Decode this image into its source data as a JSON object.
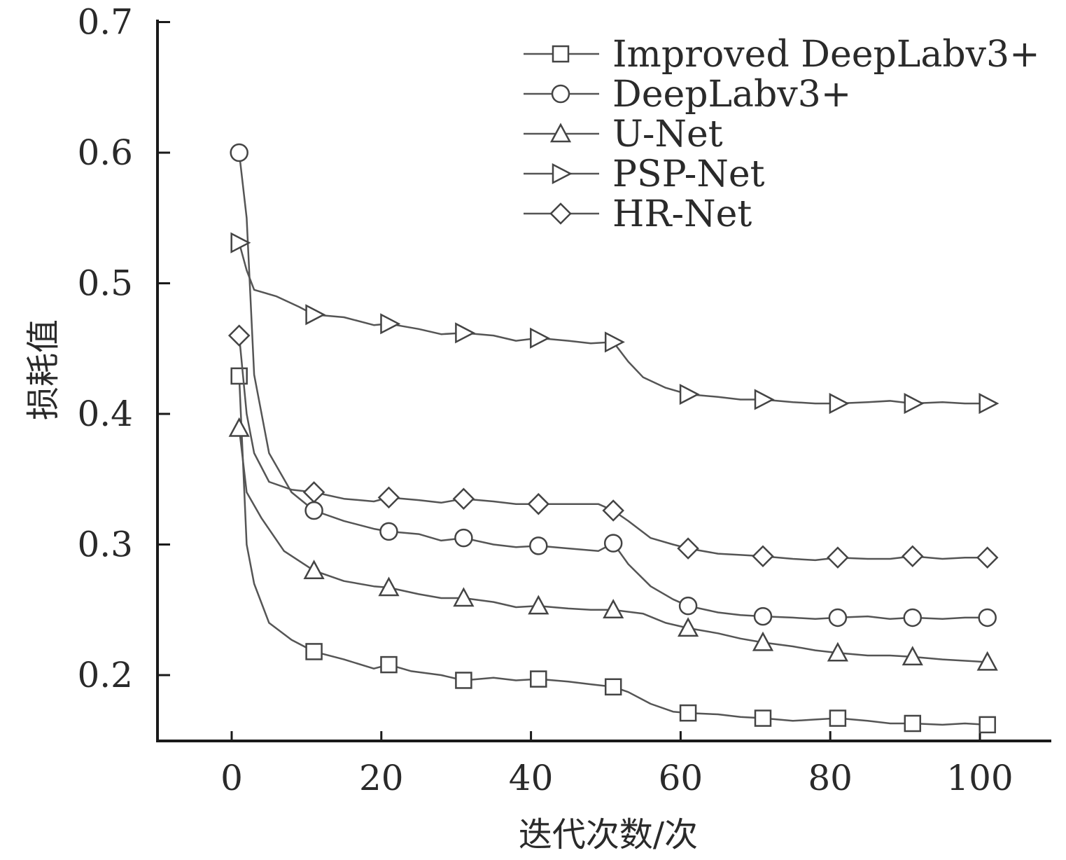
{
  "chart_data": {
    "type": "line",
    "title": "",
    "xlabel": "迭代次数/次",
    "ylabel": "损耗值",
    "xlim": [
      -10,
      110
    ],
    "ylim": [
      0.15,
      0.7
    ],
    "x_ticks": [
      "0",
      "20",
      "40",
      "60",
      "80",
      "100"
    ],
    "y_ticks": [
      "0.2",
      "0.3",
      "0.4",
      "0.5",
      "0.6",
      "0.7"
    ],
    "legend_position": "top-right",
    "grid": false,
    "x": [
      1,
      11,
      21,
      31,
      41,
      51,
      61,
      71,
      81,
      91,
      101
    ],
    "series": [
      {
        "name": "Improved DeepLabv3+",
        "marker": "square",
        "values": [
          0.429,
          0.218,
          0.208,
          0.196,
          0.197,
          0.191,
          0.171,
          0.167,
          0.167,
          0.163,
          0.162
        ],
        "line": [
          [
            1,
            0.429
          ],
          [
            2,
            0.3
          ],
          [
            3,
            0.27
          ],
          [
            5,
            0.24
          ],
          [
            8,
            0.227
          ],
          [
            11,
            0.218
          ],
          [
            15,
            0.212
          ],
          [
            19,
            0.205
          ],
          [
            21,
            0.208
          ],
          [
            24,
            0.203
          ],
          [
            28,
            0.2
          ],
          [
            31,
            0.196
          ],
          [
            35,
            0.198
          ],
          [
            38,
            0.196
          ],
          [
            41,
            0.197
          ],
          [
            45,
            0.195
          ],
          [
            48,
            0.193
          ],
          [
            51,
            0.191
          ],
          [
            53,
            0.187
          ],
          [
            56,
            0.178
          ],
          [
            59,
            0.172
          ],
          [
            61,
            0.171
          ],
          [
            65,
            0.17
          ],
          [
            68,
            0.168
          ],
          [
            71,
            0.167
          ],
          [
            75,
            0.165
          ],
          [
            78,
            0.166
          ],
          [
            81,
            0.167
          ],
          [
            85,
            0.165
          ],
          [
            88,
            0.163
          ],
          [
            91,
            0.163
          ],
          [
            95,
            0.162
          ],
          [
            98,
            0.163
          ],
          [
            101,
            0.162
          ]
        ]
      },
      {
        "name": "DeepLabv3+",
        "marker": "circle",
        "values": [
          0.6,
          0.326,
          0.31,
          0.305,
          0.299,
          0.301,
          0.253,
          0.245,
          0.244,
          0.244,
          0.244
        ],
        "line": [
          [
            1,
            0.6
          ],
          [
            2,
            0.55
          ],
          [
            3,
            0.43
          ],
          [
            5,
            0.37
          ],
          [
            8,
            0.34
          ],
          [
            11,
            0.326
          ],
          [
            15,
            0.318
          ],
          [
            19,
            0.312
          ],
          [
            21,
            0.31
          ],
          [
            25,
            0.308
          ],
          [
            28,
            0.303
          ],
          [
            31,
            0.305
          ],
          [
            35,
            0.3
          ],
          [
            38,
            0.298
          ],
          [
            41,
            0.299
          ],
          [
            45,
            0.297
          ],
          [
            49,
            0.295
          ],
          [
            51,
            0.301
          ],
          [
            53,
            0.285
          ],
          [
            56,
            0.268
          ],
          [
            59,
            0.258
          ],
          [
            61,
            0.253
          ],
          [
            65,
            0.248
          ],
          [
            68,
            0.246
          ],
          [
            71,
            0.245
          ],
          [
            75,
            0.244
          ],
          [
            78,
            0.243
          ],
          [
            81,
            0.244
          ],
          [
            85,
            0.245
          ],
          [
            88,
            0.243
          ],
          [
            91,
            0.244
          ],
          [
            95,
            0.243
          ],
          [
            98,
            0.244
          ],
          [
            101,
            0.244
          ]
        ]
      },
      {
        "name": "U-Net",
        "marker": "triangle-up",
        "values": [
          0.389,
          0.28,
          0.267,
          0.259,
          0.253,
          0.25,
          0.236,
          0.225,
          0.217,
          0.214,
          0.21
        ],
        "line": [
          [
            1,
            0.389
          ],
          [
            2,
            0.34
          ],
          [
            4,
            0.32
          ],
          [
            7,
            0.295
          ],
          [
            11,
            0.28
          ],
          [
            15,
            0.272
          ],
          [
            19,
            0.268
          ],
          [
            21,
            0.267
          ],
          [
            25,
            0.262
          ],
          [
            28,
            0.259
          ],
          [
            31,
            0.259
          ],
          [
            35,
            0.256
          ],
          [
            38,
            0.252
          ],
          [
            41,
            0.253
          ],
          [
            45,
            0.251
          ],
          [
            48,
            0.25
          ],
          [
            51,
            0.25
          ],
          [
            55,
            0.247
          ],
          [
            58,
            0.24
          ],
          [
            61,
            0.236
          ],
          [
            65,
            0.232
          ],
          [
            68,
            0.228
          ],
          [
            71,
            0.225
          ],
          [
            75,
            0.222
          ],
          [
            78,
            0.219
          ],
          [
            81,
            0.217
          ],
          [
            85,
            0.215
          ],
          [
            88,
            0.215
          ],
          [
            91,
            0.214
          ],
          [
            95,
            0.212
          ],
          [
            98,
            0.211
          ],
          [
            101,
            0.21
          ]
        ]
      },
      {
        "name": "PSP-Net",
        "marker": "triangle-right",
        "values": [
          0.531,
          0.476,
          0.469,
          0.462,
          0.458,
          0.455,
          0.415,
          0.411,
          0.408,
          0.408,
          0.408
        ],
        "line": [
          [
            1,
            0.531
          ],
          [
            2,
            0.51
          ],
          [
            3,
            0.495
          ],
          [
            6,
            0.49
          ],
          [
            9,
            0.482
          ],
          [
            11,
            0.476
          ],
          [
            15,
            0.474
          ],
          [
            19,
            0.468
          ],
          [
            21,
            0.469
          ],
          [
            25,
            0.465
          ],
          [
            28,
            0.461
          ],
          [
            31,
            0.462
          ],
          [
            35,
            0.46
          ],
          [
            38,
            0.456
          ],
          [
            41,
            0.458
          ],
          [
            45,
            0.456
          ],
          [
            48,
            0.454
          ],
          [
            51,
            0.455
          ],
          [
            53,
            0.44
          ],
          [
            55,
            0.428
          ],
          [
            58,
            0.42
          ],
          [
            61,
            0.415
          ],
          [
            65,
            0.413
          ],
          [
            68,
            0.411
          ],
          [
            71,
            0.411
          ],
          [
            75,
            0.409
          ],
          [
            78,
            0.408
          ],
          [
            81,
            0.408
          ],
          [
            85,
            0.409
          ],
          [
            88,
            0.41
          ],
          [
            91,
            0.408
          ],
          [
            95,
            0.409
          ],
          [
            98,
            0.408
          ],
          [
            101,
            0.408
          ]
        ]
      },
      {
        "name": "HR-Net",
        "marker": "diamond",
        "values": [
          0.46,
          0.34,
          0.336,
          0.335,
          0.331,
          0.326,
          0.297,
          0.291,
          0.29,
          0.291,
          0.29
        ],
        "line": [
          [
            1,
            0.46
          ],
          [
            2,
            0.4
          ],
          [
            3,
            0.37
          ],
          [
            5,
            0.348
          ],
          [
            8,
            0.342
          ],
          [
            11,
            0.34
          ],
          [
            15,
            0.335
          ],
          [
            19,
            0.333
          ],
          [
            21,
            0.336
          ],
          [
            25,
            0.334
          ],
          [
            28,
            0.332
          ],
          [
            31,
            0.335
          ],
          [
            35,
            0.333
          ],
          [
            38,
            0.331
          ],
          [
            41,
            0.331
          ],
          [
            45,
            0.331
          ],
          [
            49,
            0.331
          ],
          [
            51,
            0.326
          ],
          [
            53,
            0.318
          ],
          [
            56,
            0.305
          ],
          [
            59,
            0.3
          ],
          [
            61,
            0.297
          ],
          [
            65,
            0.293
          ],
          [
            68,
            0.292
          ],
          [
            71,
            0.291
          ],
          [
            75,
            0.289
          ],
          [
            78,
            0.288
          ],
          [
            81,
            0.29
          ],
          [
            85,
            0.289
          ],
          [
            88,
            0.289
          ],
          [
            91,
            0.291
          ],
          [
            95,
            0.289
          ],
          [
            98,
            0.29
          ],
          [
            101,
            0.29
          ]
        ]
      }
    ]
  }
}
